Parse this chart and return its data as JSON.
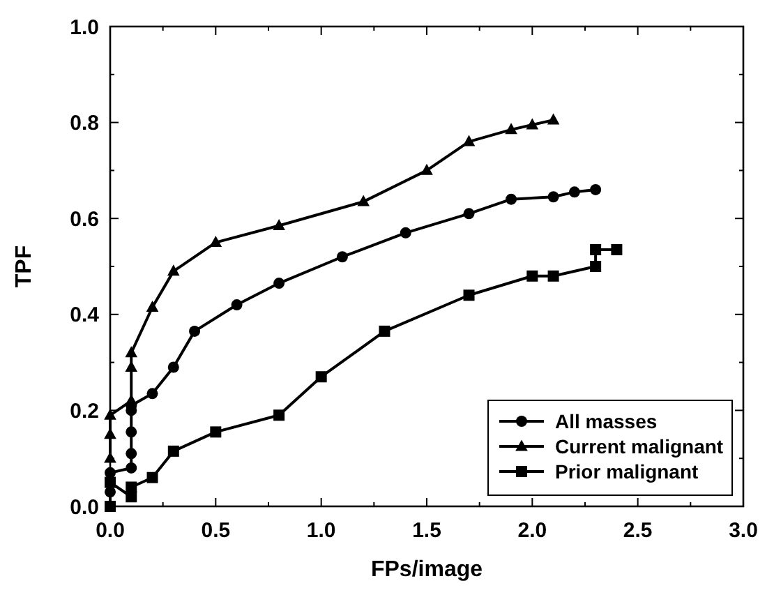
{
  "chart_data": {
    "type": "line",
    "xlabel": "FPs/image",
    "ylabel": "TPF",
    "xlim": [
      0,
      3
    ],
    "ylim": [
      0,
      1
    ],
    "xticks": [
      {
        "value": 0,
        "label": "0.0"
      },
      {
        "value": 0.25,
        "label": null
      },
      {
        "value": 0.5,
        "label": "0.5"
      },
      {
        "value": 0.75,
        "label": null
      },
      {
        "value": 1,
        "label": "1.0"
      },
      {
        "value": 1.25,
        "label": null
      },
      {
        "value": 1.5,
        "label": "1.5"
      },
      {
        "value": 1.75,
        "label": null
      },
      {
        "value": 2,
        "label": "2.0"
      },
      {
        "value": 2.25,
        "label": null
      },
      {
        "value": 2.5,
        "label": "2.5"
      },
      {
        "value": 2.75,
        "label": null
      },
      {
        "value": 3,
        "label": "3.0"
      }
    ],
    "yticks": [
      {
        "value": 0,
        "label": "0.0"
      },
      {
        "value": 0.1,
        "label": null
      },
      {
        "value": 0.2,
        "label": "0.2"
      },
      {
        "value": 0.3,
        "label": null
      },
      {
        "value": 0.4,
        "label": "0.4"
      },
      {
        "value": 0.5,
        "label": null
      },
      {
        "value": 0.6,
        "label": "0.6"
      },
      {
        "value": 0.7,
        "label": null
      },
      {
        "value": 0.8,
        "label": "0.8"
      },
      {
        "value": 0.9,
        "label": null
      },
      {
        "value": 1,
        "label": "1.0"
      }
    ],
    "legend": "bottom right",
    "grid": false,
    "line_style": "solid",
    "series": [
      {
        "name": "All masses",
        "color": "#000000",
        "marker": "circle",
        "x": [
          0,
          0,
          0.1,
          0.1,
          0.1,
          0.1,
          0.1,
          0.2,
          0.3,
          0.4,
          0.6,
          0.8,
          1.1,
          1.4,
          1.7,
          1.9,
          2.1,
          2.2,
          2.3
        ],
        "values": [
          0.03,
          0.07,
          0.08,
          0.11,
          0.155,
          0.2,
          0.21,
          0.235,
          0.29,
          0.365,
          0.42,
          0.465,
          0.52,
          0.57,
          0.61,
          0.64,
          0.645,
          0.655,
          0.66
        ]
      },
      {
        "name": "Current malignant",
        "color": "#000000",
        "marker": "triangle",
        "x": [
          0,
          0,
          0,
          0.1,
          0.1,
          0.1,
          0.2,
          0.3,
          0.5,
          0.8,
          1.2,
          1.5,
          1.7,
          1.9,
          2.0,
          2.1
        ],
        "values": [
          0.1,
          0.15,
          0.19,
          0.22,
          0.29,
          0.32,
          0.415,
          0.49,
          0.55,
          0.585,
          0.635,
          0.7,
          0.76,
          0.785,
          0.795,
          0.805
        ]
      },
      {
        "name": "Prior malignant",
        "color": "#000000",
        "marker": "square",
        "x": [
          0,
          0,
          0.1,
          0.1,
          0.2,
          0.3,
          0.5,
          0.8,
          1.0,
          1.3,
          1.7,
          2.0,
          2.1,
          2.3,
          2.3,
          2.4
        ],
        "values": [
          0,
          0.05,
          0.02,
          0.04,
          0.06,
          0.115,
          0.155,
          0.19,
          0.27,
          0.365,
          0.44,
          0.48,
          0.48,
          0.5,
          0.535,
          0.535
        ]
      }
    ]
  }
}
